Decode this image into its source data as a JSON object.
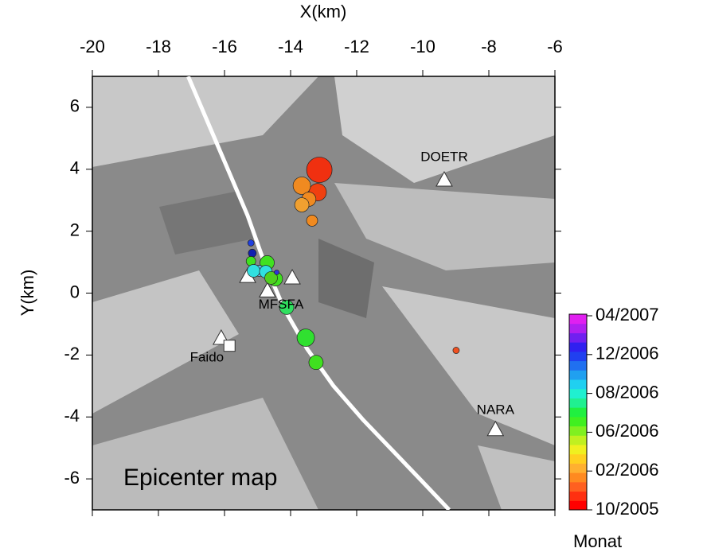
{
  "chart_data": {
    "type": "scatter",
    "title": "Epicenter map",
    "xlabel": "X(km)",
    "ylabel": "Y(km)",
    "xlim": [
      -20,
      -6
    ],
    "xticks": [
      -20,
      -18,
      -16,
      -14,
      -12,
      -10,
      -8,
      -6
    ],
    "ylim": [
      -7,
      7
    ],
    "yticks": [
      -6,
      -4,
      -2,
      0,
      2,
      4,
      6
    ],
    "series": [
      {
        "x": [
          -13.13,
          -13.18,
          -13.66,
          -13.45,
          -13.66,
          -13.35,
          -15.2,
          -15.16,
          -15.2,
          -14.71,
          -14.95,
          -15.12,
          -14.46,
          -14.75,
          -14.59,
          -14.42,
          -14.12,
          -13.54,
          -13.23,
          -8.99
        ],
        "y": [
          3.98,
          3.26,
          3.47,
          3.03,
          2.85,
          2.34,
          1.62,
          1.29,
          1.03,
          0.98,
          0.72,
          0.72,
          0.46,
          0.69,
          0.49,
          0.67,
          -0.46,
          -1.44,
          -2.24,
          -1.85
        ],
        "sizes": [
          16,
          11,
          11,
          9,
          9,
          7,
          4,
          5,
          6,
          9,
          7,
          8,
          9,
          8,
          8,
          3,
          9,
          11,
          9,
          4
        ],
        "colors": [
          "#f03010",
          "#f04010",
          "#f08a20",
          "#f08a20",
          "#f0a030",
          "#f08a20",
          "#2040e0",
          "#1020b0",
          "#40e020",
          "#40e020",
          "#60c0f0",
          "#30e0e0",
          "#40e020",
          "#30e0e0",
          "#50d020",
          "#3030e0",
          "#30e060",
          "#30e030",
          "#40e020",
          "#f05020"
        ]
      }
    ],
    "fault_line": {
      "x": [
        -17.1,
        -16.5,
        -15.9,
        -15.3,
        -14.8,
        -14.2,
        -13.5,
        -12.7,
        -11.8,
        -10.9,
        -10.0,
        -9.2
      ],
      "y": [
        7,
        5.5,
        4,
        2.5,
        1,
        -0.5,
        -1.8,
        -3,
        -4.1,
        -5.1,
        -6.1,
        -7
      ]
    },
    "stations": {
      "names": [
        "DOETR",
        null,
        null,
        null,
        "MFSFA",
        "Faido",
        "NARA"
      ],
      "x": [
        -9.35,
        -15.3,
        -14.7,
        -13.95,
        -14.7,
        -16.1,
        -7.8
      ],
      "y": [
        3.66,
        0.55,
        0.08,
        0.5,
        0.08,
        -1.45,
        -4.4
      ]
    },
    "faido_square": {
      "x": -15.85,
      "y": -1.7
    },
    "colorbar": {
      "label": "Monat",
      "ticks": [
        "10/2005",
        "02/2006",
        "06/2006",
        "08/2006",
        "12/2006",
        "04/2007"
      ],
      "colors": [
        "#ff0000",
        "#ff3010",
        "#ff6020",
        "#ff8a20",
        "#ffb030",
        "#ffd020",
        "#f0f020",
        "#c0f020",
        "#80f020",
        "#40f020",
        "#20f040",
        "#20f090",
        "#20f0d0",
        "#20d0f0",
        "#20a0f0",
        "#2070f0",
        "#2040f0",
        "#3020f0",
        "#7020f0",
        "#b020f0",
        "#e020f0"
      ]
    }
  }
}
